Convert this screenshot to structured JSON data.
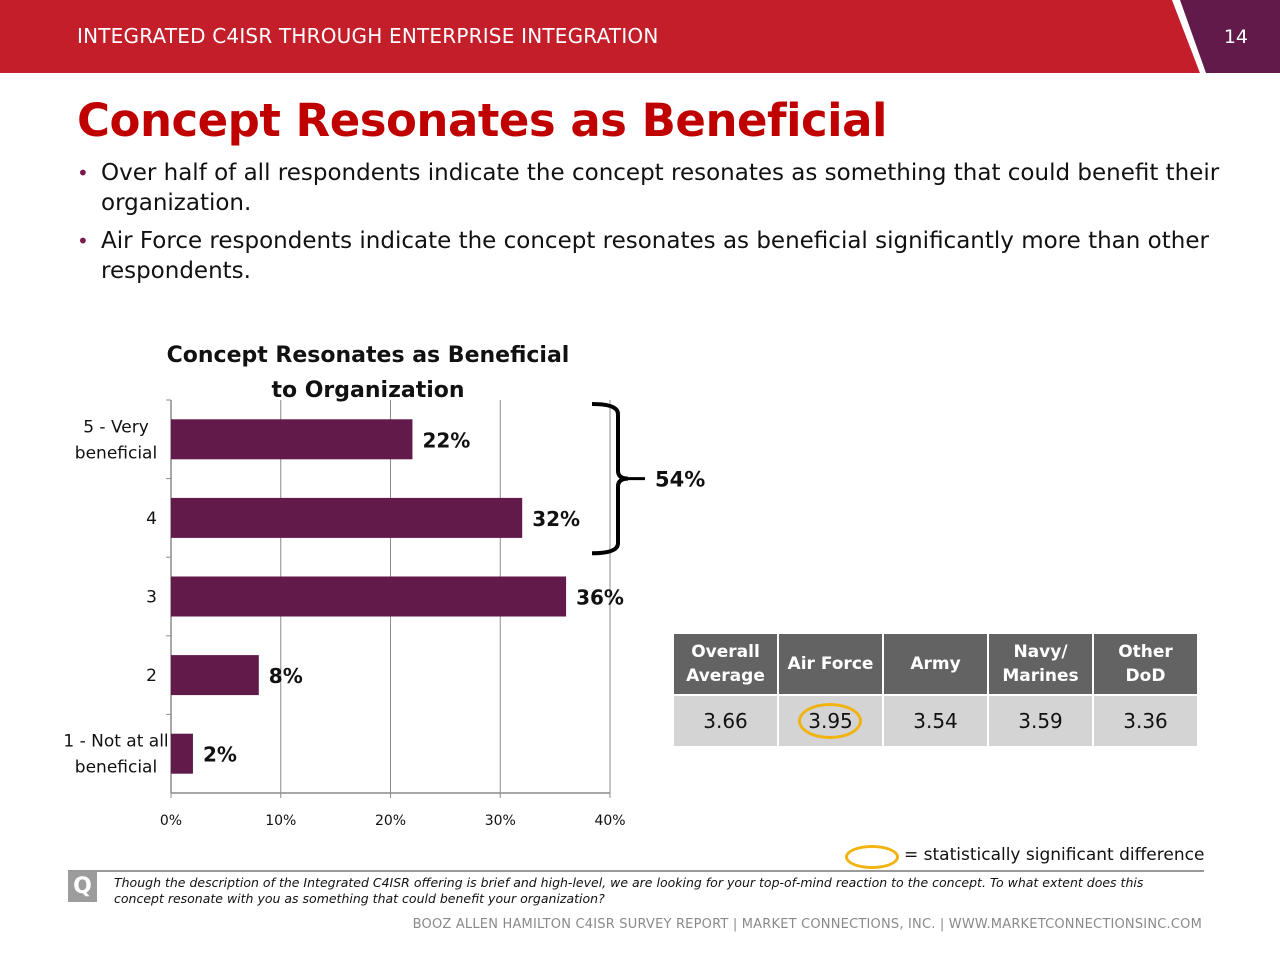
{
  "header": {
    "title": "INTEGRATED C4ISR THROUGH ENTERPRISE INTEGRATION",
    "page_number": "14"
  },
  "slide_title": "Concept Resonates as Beneficial",
  "bullets": [
    "Over half of all respondents indicate the concept resonates as something that could benefit their organization.",
    "Air Force respondents indicate the concept resonates as beneficial significantly more than other respondents."
  ],
  "chart_data": {
    "type": "bar",
    "orientation": "horizontal",
    "title": "Concept Resonates as Beneficial to Organization",
    "categories": [
      "5 - Very beneficial",
      "4",
      "3",
      "2",
      "1 - Not at all beneficial"
    ],
    "values": [
      22,
      32,
      36,
      8,
      2
    ],
    "value_labels": [
      "22%",
      "32%",
      "36%",
      "8%",
      "2%"
    ],
    "xlim": [
      0,
      40
    ],
    "x_ticks": [
      "0%",
      "10%",
      "20%",
      "30%",
      "40%"
    ],
    "grid": true,
    "bar_color": "#611a4a",
    "annotation": "54%"
  },
  "table": {
    "headers": [
      "Overall Average",
      "Air Force",
      "Army",
      "Navy/ Marines",
      "Other DoD"
    ],
    "values": [
      "3.66",
      "3.95",
      "3.54",
      "3.59",
      "3.36"
    ]
  },
  "legend": {
    "text": "= statistically significant difference",
    "color": "#f0b310"
  },
  "question": {
    "badge": "Q",
    "text": "Though the description of the Integrated C4ISR offering is brief and high-level, we are looking for your top-of-mind reaction to the concept. To what extent does this concept resonate with you as something that could benefit your organization?"
  },
  "footer": "BOOZ ALLEN HAMILTON C4ISR SURVEY REPORT   |   MARKET CONNECTIONS, INC.  |  WWW.MARKETCONNECTIONSINC.COM",
  "colors": {
    "header_red": "#c41e2a",
    "header_purple": "#611a4a",
    "title_red": "#c00000"
  }
}
